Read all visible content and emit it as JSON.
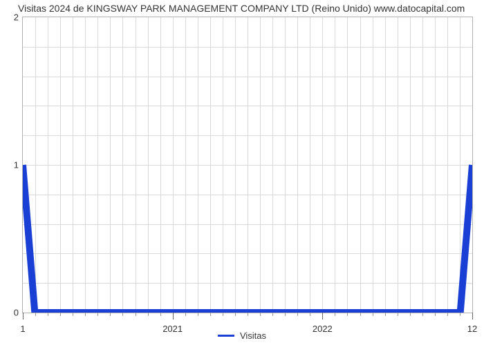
{
  "chart": {
    "type": "line",
    "title": "Visitas 2024 de KINGSWAY PARK MANAGEMENT COMPANY LTD (Reino Unido) www.datocapital.com",
    "title_fontsize": 14,
    "title_color": "#333333",
    "background_color": "#ffffff",
    "plot_border_color": "#b0b0b0",
    "grid_color": "#d9d9d9",
    "y": {
      "min": 0,
      "max": 2,
      "ticks": [
        0,
        1,
        2
      ],
      "minor_grid_count_between": 4,
      "label_fontsize": 13
    },
    "x": {
      "min": 2020.0,
      "max": 2023.0,
      "major_ticks": [
        2021,
        2022
      ],
      "major_labels": [
        "2021",
        "2022"
      ],
      "minor_per_major": 12,
      "edge_left_label": "1",
      "edge_right_label": "12",
      "label_fontsize": 13
    },
    "series": [
      {
        "name": "Visitas",
        "color": "#1a3fd4",
        "line_width": 2.5,
        "points": [
          {
            "x": 2020.0,
            "y": 1.0
          },
          {
            "x": 2020.08,
            "y": 0.0
          },
          {
            "x": 2022.92,
            "y": 0.0
          },
          {
            "x": 2023.0,
            "y": 1.0
          }
        ]
      }
    ],
    "legend": {
      "label": "Visitas",
      "swatch_color": "#1a3fd4",
      "fontsize": 13
    }
  }
}
